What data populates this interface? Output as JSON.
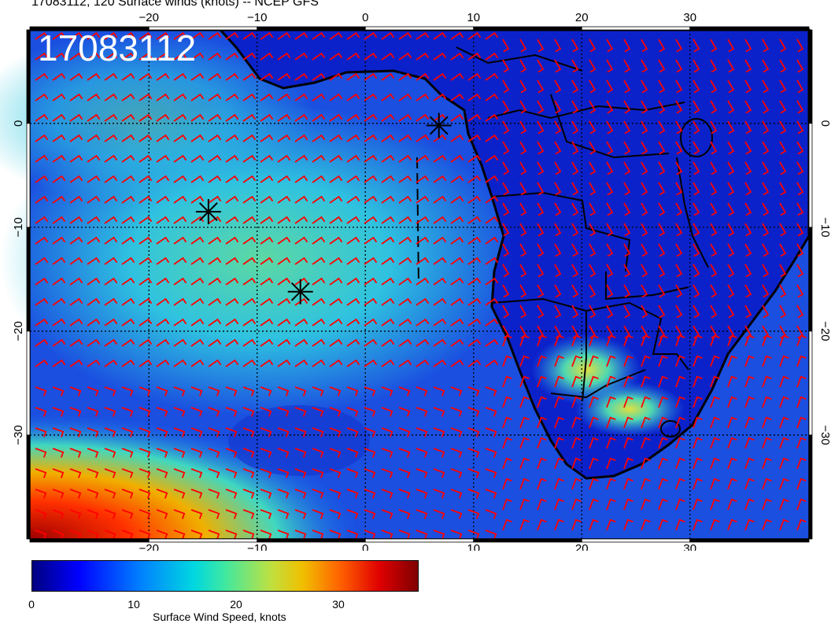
{
  "title": "17083112, 120 Surface winds (knots) -- NCEP GFS",
  "map_label": "17083112",
  "axes": {
    "x_ticks": [
      "−20",
      "−10",
      "0",
      "10",
      "20",
      "30"
    ],
    "y_ticks": [
      "0",
      "−10",
      "−20",
      "−30"
    ],
    "lon_range": [
      -31,
      41
    ],
    "lat_range": [
      -40,
      9
    ]
  },
  "storm_markers": [
    {
      "lon": 6.8,
      "lat": -0.2
    },
    {
      "lon": -14.5,
      "lat": -8.5
    },
    {
      "lon": -6.0,
      "lat": -16.2
    }
  ],
  "colorbar": {
    "label": "Surface Wind Speed, knots",
    "ticks": [
      "0",
      "10",
      "20",
      "30"
    ],
    "tick_values": [
      0,
      10,
      20,
      30
    ],
    "range": [
      0,
      38
    ]
  },
  "colors": {
    "barb": "#ff0000",
    "ocean_base": "#1a4fe0",
    "land_base": "#0a1ec8",
    "coast": "#000000"
  }
}
